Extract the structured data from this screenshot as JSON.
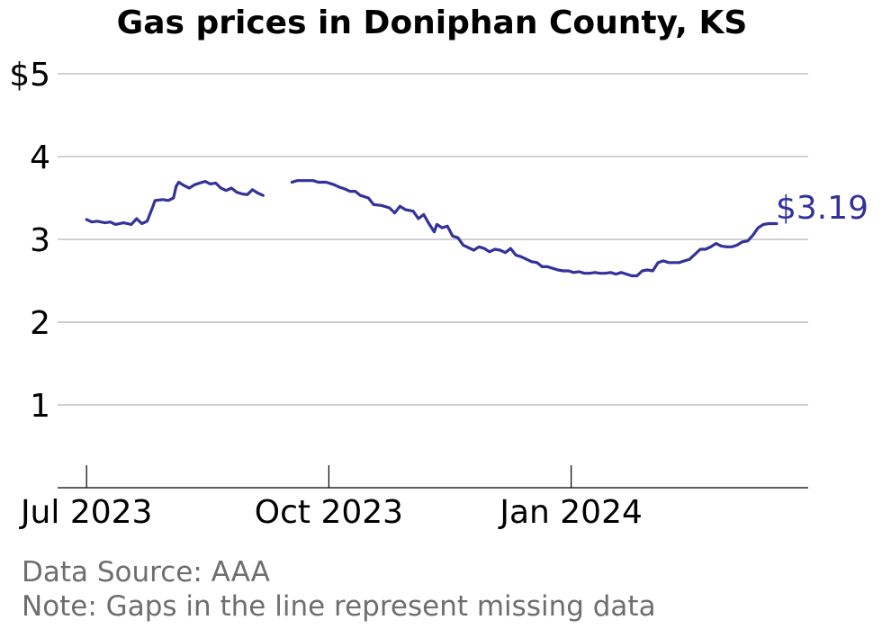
{
  "colors": {
    "line": "#33329a",
    "grid": "#b3b3b3",
    "note": "#6e6e6e"
  },
  "chart_data": {
    "type": "line",
    "title": "Gas prices in Doniphan County, KS",
    "xlabel": "",
    "ylabel": "",
    "ylim": [
      0,
      5
    ],
    "y_ticks": [
      {
        "value": 1,
        "label": "1"
      },
      {
        "value": 2,
        "label": "2"
      },
      {
        "value": 3,
        "label": "3"
      },
      {
        "value": 4,
        "label": "4"
      },
      {
        "value": 5,
        "label": "$5"
      }
    ],
    "x_ticks": [
      {
        "date": "2023-07-01",
        "label": "Jul 2023"
      },
      {
        "date": "2023-10-01",
        "label": "Oct 2023"
      },
      {
        "date": "2024-01-01",
        "label": "Jan 2024"
      }
    ],
    "xlim": [
      "2023-06-20",
      "2024-03-31"
    ],
    "grid": true,
    "end_label": "$3.19",
    "segments": [
      [
        [
          "2023-07-01",
          3.24
        ],
        [
          "2023-07-03",
          3.21
        ],
        [
          "2023-07-05",
          3.22
        ],
        [
          "2023-07-08",
          3.2
        ],
        [
          "2023-07-10",
          3.21
        ],
        [
          "2023-07-12",
          3.18
        ],
        [
          "2023-07-15",
          3.2
        ],
        [
          "2023-07-18",
          3.18
        ],
        [
          "2023-07-20",
          3.25
        ],
        [
          "2023-07-22",
          3.19
        ],
        [
          "2023-07-24",
          3.22
        ],
        [
          "2023-07-26",
          3.38
        ],
        [
          "2023-07-27",
          3.47
        ],
        [
          "2023-07-30",
          3.48
        ],
        [
          "2023-08-01",
          3.47
        ],
        [
          "2023-08-03",
          3.5
        ],
        [
          "2023-08-04",
          3.64
        ],
        [
          "2023-08-05",
          3.69
        ],
        [
          "2023-08-07",
          3.65
        ],
        [
          "2023-08-09",
          3.62
        ],
        [
          "2023-08-11",
          3.66
        ],
        [
          "2023-08-13",
          3.68
        ],
        [
          "2023-08-15",
          3.7
        ],
        [
          "2023-08-17",
          3.67
        ],
        [
          "2023-08-19",
          3.68
        ],
        [
          "2023-08-21",
          3.62
        ],
        [
          "2023-08-23",
          3.59
        ],
        [
          "2023-08-25",
          3.62
        ],
        [
          "2023-08-27",
          3.57
        ],
        [
          "2023-08-29",
          3.55
        ],
        [
          "2023-08-31",
          3.54
        ],
        [
          "2023-09-02",
          3.6
        ],
        [
          "2023-09-04",
          3.56
        ],
        [
          "2023-09-06",
          3.53
        ]
      ],
      [
        [
          "2023-09-17",
          3.69
        ],
        [
          "2023-09-19",
          3.71
        ],
        [
          "2023-09-22",
          3.71
        ],
        [
          "2023-09-25",
          3.71
        ],
        [
          "2023-09-27",
          3.69
        ],
        [
          "2023-09-30",
          3.69
        ],
        [
          "2023-10-03",
          3.66
        ],
        [
          "2023-10-05",
          3.63
        ],
        [
          "2023-10-07",
          3.61
        ],
        [
          "2023-10-09",
          3.58
        ],
        [
          "2023-10-11",
          3.58
        ],
        [
          "2023-10-13",
          3.53
        ],
        [
          "2023-10-16",
          3.5
        ],
        [
          "2023-10-18",
          3.42
        ],
        [
          "2023-10-21",
          3.41
        ],
        [
          "2023-10-24",
          3.38
        ],
        [
          "2023-10-26",
          3.32
        ],
        [
          "2023-10-28",
          3.4
        ],
        [
          "2023-10-30",
          3.36
        ],
        [
          "2023-11-02",
          3.34
        ],
        [
          "2023-11-04",
          3.25
        ],
        [
          "2023-11-06",
          3.3
        ],
        [
          "2023-11-08",
          3.19
        ],
        [
          "2023-11-10",
          3.09
        ],
        [
          "2023-11-11",
          3.18
        ],
        [
          "2023-11-13",
          3.14
        ],
        [
          "2023-11-15",
          3.16
        ],
        [
          "2023-11-17",
          3.04
        ],
        [
          "2023-11-19",
          3.02
        ],
        [
          "2023-11-21",
          2.93
        ],
        [
          "2023-11-23",
          2.9
        ],
        [
          "2023-11-25",
          2.87
        ],
        [
          "2023-11-27",
          2.91
        ],
        [
          "2023-11-29",
          2.89
        ],
        [
          "2023-12-01",
          2.85
        ],
        [
          "2023-12-03",
          2.88
        ],
        [
          "2023-12-05",
          2.87
        ],
        [
          "2023-12-07",
          2.84
        ],
        [
          "2023-12-09",
          2.89
        ],
        [
          "2023-12-11",
          2.81
        ],
        [
          "2023-12-13",
          2.79
        ],
        [
          "2023-12-15",
          2.76
        ],
        [
          "2023-12-17",
          2.73
        ],
        [
          "2023-12-19",
          2.72
        ],
        [
          "2023-12-21",
          2.67
        ],
        [
          "2023-12-23",
          2.67
        ],
        [
          "2023-12-25",
          2.65
        ],
        [
          "2023-12-27",
          2.63
        ],
        [
          "2023-12-29",
          2.62
        ],
        [
          "2023-12-31",
          2.62
        ],
        [
          "2024-01-02",
          2.6
        ],
        [
          "2024-01-04",
          2.61
        ],
        [
          "2024-01-06",
          2.59
        ],
        [
          "2024-01-08",
          2.59
        ],
        [
          "2024-01-10",
          2.6
        ],
        [
          "2024-01-12",
          2.59
        ],
        [
          "2024-01-14",
          2.59
        ],
        [
          "2024-01-16",
          2.6
        ],
        [
          "2024-01-18",
          2.58
        ],
        [
          "2024-01-20",
          2.6
        ],
        [
          "2024-01-22",
          2.58
        ],
        [
          "2024-01-24",
          2.56
        ],
        [
          "2024-01-26",
          2.56
        ],
        [
          "2024-01-28",
          2.62
        ],
        [
          "2024-01-30",
          2.63
        ],
        [
          "2024-02-01",
          2.62
        ],
        [
          "2024-02-03",
          2.72
        ],
        [
          "2024-02-05",
          2.74
        ],
        [
          "2024-02-07",
          2.72
        ],
        [
          "2024-02-09",
          2.72
        ],
        [
          "2024-02-11",
          2.72
        ],
        [
          "2024-02-13",
          2.74
        ],
        [
          "2024-02-15",
          2.76
        ],
        [
          "2024-02-17",
          2.82
        ],
        [
          "2024-02-19",
          2.88
        ],
        [
          "2024-02-21",
          2.88
        ],
        [
          "2024-02-23",
          2.91
        ],
        [
          "2024-02-25",
          2.95
        ],
        [
          "2024-02-27",
          2.92
        ],
        [
          "2024-02-29",
          2.91
        ],
        [
          "2024-03-02",
          2.91
        ],
        [
          "2024-03-04",
          2.93
        ],
        [
          "2024-03-06",
          2.97
        ],
        [
          "2024-03-08",
          2.98
        ],
        [
          "2024-03-10",
          3.05
        ],
        [
          "2024-03-12",
          3.14
        ],
        [
          "2024-03-14",
          3.18
        ],
        [
          "2024-03-16",
          3.19
        ],
        [
          "2024-03-19",
          3.19
        ]
      ]
    ]
  },
  "notes": {
    "source": "Data Source: AAA",
    "note": "Note: Gaps in the line represent missing data"
  }
}
